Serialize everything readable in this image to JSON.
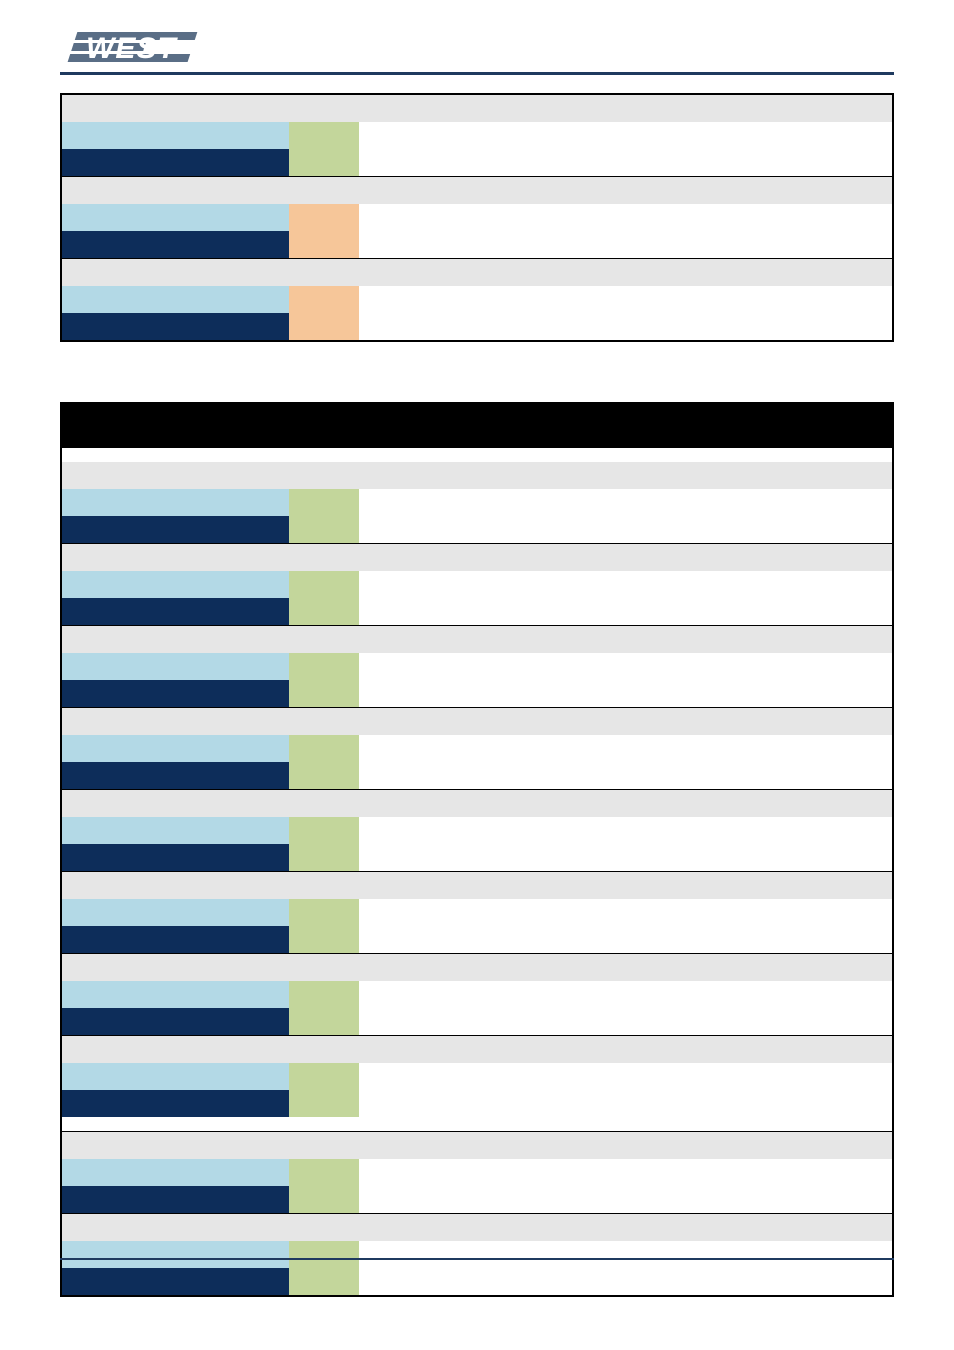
{
  "logo_text": "WEST",
  "colors": {
    "rule": "#1f3a5f",
    "row_header": "#e6e6e6",
    "lightblue": "#b3d9e6",
    "darkblue": "#0d2d5a",
    "green": "#c3d69b",
    "orange": "#f6c699",
    "section_bg": "#000000",
    "section_fg": "#ffffff"
  },
  "table1": {
    "groups": [
      {
        "swatch": "green",
        "trailing_spacer": false
      },
      {
        "swatch": "orange",
        "trailing_spacer": false
      },
      {
        "swatch": "orange",
        "trailing_spacer": false
      }
    ]
  },
  "table2": {
    "section_title": "",
    "groups": [
      {
        "swatch": "green",
        "trailing_spacer": false
      },
      {
        "swatch": "green",
        "trailing_spacer": false
      },
      {
        "swatch": "green",
        "trailing_spacer": false
      },
      {
        "swatch": "green",
        "trailing_spacer": false
      },
      {
        "swatch": "green",
        "trailing_spacer": false
      },
      {
        "swatch": "green",
        "trailing_spacer": false
      },
      {
        "swatch": "green",
        "trailing_spacer": false
      },
      {
        "swatch": "green",
        "trailing_spacer": true
      },
      {
        "swatch": "green",
        "trailing_spacer": false
      },
      {
        "swatch": "green",
        "trailing_spacer": false
      }
    ]
  }
}
